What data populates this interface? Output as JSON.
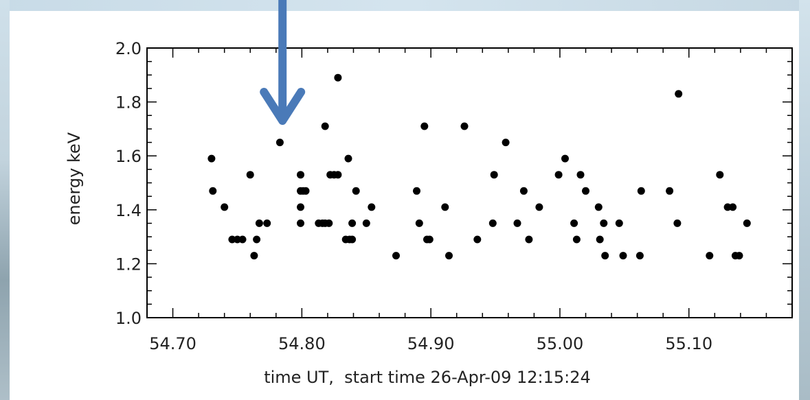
{
  "chart_data": {
    "type": "scatter",
    "xlabel": "time UT,  start time 26-Apr-09 12:15:24",
    "ylabel": "energy keV",
    "xlim": [
      54.68,
      55.18
    ],
    "ylim": [
      1.0,
      2.0
    ],
    "xticks": [
      "54.70",
      "54.80",
      "54.90",
      "55.00",
      "55.10"
    ],
    "xtick_values": [
      54.7,
      54.8,
      54.9,
      55.0,
      55.1
    ],
    "yticks": [
      "1.0",
      "1.2",
      "1.4",
      "1.6",
      "1.8",
      "2.0"
    ],
    "ytick_values": [
      1.0,
      1.2,
      1.4,
      1.6,
      1.8,
      2.0
    ],
    "grid": false,
    "marker_color": "#000000",
    "annotation": {
      "type": "arrow",
      "color": "#4a7ab8",
      "points_to": {
        "x": 54.785,
        "y": 1.72
      }
    },
    "points": [
      {
        "x": 54.73,
        "y": 1.59
      },
      {
        "x": 54.731,
        "y": 1.47
      },
      {
        "x": 54.74,
        "y": 1.41
      },
      {
        "x": 54.746,
        "y": 1.29
      },
      {
        "x": 54.75,
        "y": 1.29
      },
      {
        "x": 54.754,
        "y": 1.29
      },
      {
        "x": 54.76,
        "y": 1.53
      },
      {
        "x": 54.763,
        "y": 1.23
      },
      {
        "x": 54.765,
        "y": 1.29
      },
      {
        "x": 54.767,
        "y": 1.35
      },
      {
        "x": 54.773,
        "y": 1.35
      },
      {
        "x": 54.783,
        "y": 1.65
      },
      {
        "x": 54.799,
        "y": 1.53
      },
      {
        "x": 54.799,
        "y": 1.47
      },
      {
        "x": 54.799,
        "y": 1.41
      },
      {
        "x": 54.799,
        "y": 1.35
      },
      {
        "x": 54.801,
        "y": 1.47
      },
      {
        "x": 54.803,
        "y": 1.47
      },
      {
        "x": 54.813,
        "y": 1.35
      },
      {
        "x": 54.816,
        "y": 1.35
      },
      {
        "x": 54.818,
        "y": 1.35
      },
      {
        "x": 54.818,
        "y": 1.71
      },
      {
        "x": 54.821,
        "y": 1.35
      },
      {
        "x": 54.822,
        "y": 1.53
      },
      {
        "x": 54.825,
        "y": 1.53
      },
      {
        "x": 54.828,
        "y": 1.53
      },
      {
        "x": 54.828,
        "y": 1.89
      },
      {
        "x": 54.834,
        "y": 1.29
      },
      {
        "x": 54.836,
        "y": 1.59
      },
      {
        "x": 54.837,
        "y": 1.29
      },
      {
        "x": 54.839,
        "y": 1.29
      },
      {
        "x": 54.839,
        "y": 1.35
      },
      {
        "x": 54.842,
        "y": 1.47
      },
      {
        "x": 54.85,
        "y": 1.35
      },
      {
        "x": 54.854,
        "y": 1.41
      },
      {
        "x": 54.873,
        "y": 1.23
      },
      {
        "x": 54.889,
        "y": 1.47
      },
      {
        "x": 54.891,
        "y": 1.35
      },
      {
        "x": 54.895,
        "y": 1.71
      },
      {
        "x": 54.897,
        "y": 1.29
      },
      {
        "x": 54.899,
        "y": 1.29
      },
      {
        "x": 54.911,
        "y": 1.41
      },
      {
        "x": 54.914,
        "y": 1.23
      },
      {
        "x": 54.926,
        "y": 1.71
      },
      {
        "x": 54.936,
        "y": 1.29
      },
      {
        "x": 54.948,
        "y": 1.35
      },
      {
        "x": 54.949,
        "y": 1.53
      },
      {
        "x": 54.958,
        "y": 1.65
      },
      {
        "x": 54.967,
        "y": 1.35
      },
      {
        "x": 54.972,
        "y": 1.47
      },
      {
        "x": 54.976,
        "y": 1.29
      },
      {
        "x": 54.984,
        "y": 1.41
      },
      {
        "x": 54.999,
        "y": 1.53
      },
      {
        "x": 55.004,
        "y": 1.59
      },
      {
        "x": 55.011,
        "y": 1.35
      },
      {
        "x": 55.013,
        "y": 1.29
      },
      {
        "x": 55.016,
        "y": 1.53
      },
      {
        "x": 55.02,
        "y": 1.47
      },
      {
        "x": 55.03,
        "y": 1.41
      },
      {
        "x": 55.031,
        "y": 1.29
      },
      {
        "x": 55.034,
        "y": 1.35
      },
      {
        "x": 55.035,
        "y": 1.23
      },
      {
        "x": 55.046,
        "y": 1.35
      },
      {
        "x": 55.049,
        "y": 1.23
      },
      {
        "x": 55.062,
        "y": 1.23
      },
      {
        "x": 55.063,
        "y": 1.47
      },
      {
        "x": 55.085,
        "y": 1.47
      },
      {
        "x": 55.091,
        "y": 1.35
      },
      {
        "x": 55.092,
        "y": 1.83
      },
      {
        "x": 55.116,
        "y": 1.23
      },
      {
        "x": 55.124,
        "y": 1.53
      },
      {
        "x": 55.13,
        "y": 1.41
      },
      {
        "x": 55.134,
        "y": 1.41
      },
      {
        "x": 55.136,
        "y": 1.23
      },
      {
        "x": 55.139,
        "y": 1.23
      },
      {
        "x": 55.145,
        "y": 1.35
      }
    ]
  }
}
